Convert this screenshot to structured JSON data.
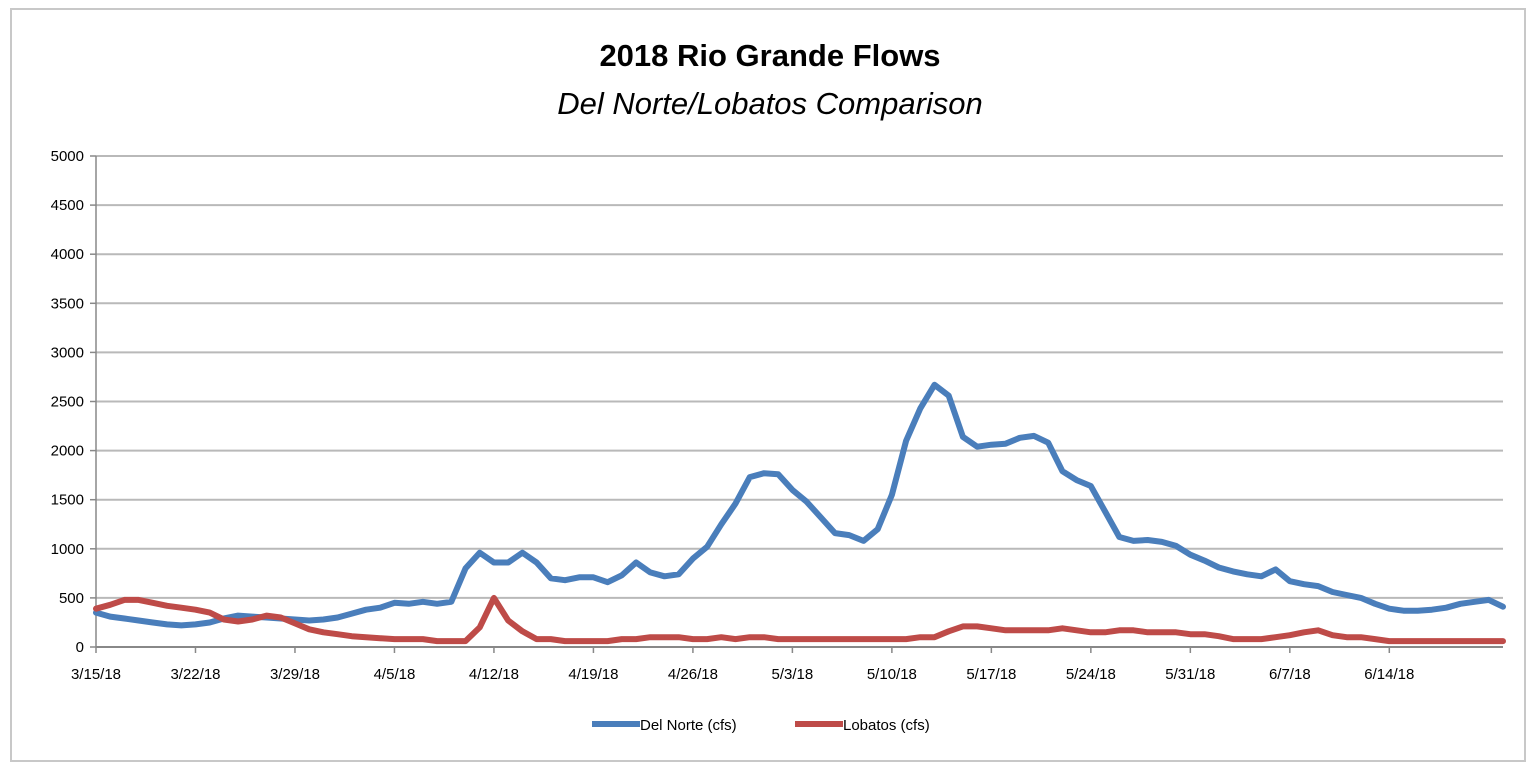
{
  "chart_data": {
    "type": "line",
    "title": "2018 Rio Grande Flows",
    "subtitle": "Del Norte/Lobatos Comparison",
    "xlabel": "",
    "ylabel": "",
    "ylim": [
      0,
      5000
    ],
    "yticks": [
      0,
      500,
      1000,
      1500,
      2000,
      2500,
      3000,
      3500,
      4000,
      4500,
      5000
    ],
    "x_tick_labels": [
      "3/15/18",
      "3/22/18",
      "3/29/18",
      "4/5/18",
      "4/12/18",
      "4/19/18",
      "4/26/18",
      "5/3/18",
      "5/10/18",
      "5/17/18",
      "5/24/18",
      "5/31/18",
      "6/7/18",
      "6/14/18"
    ],
    "grid": true,
    "legend_position": "bottom",
    "series": [
      {
        "name": "Del Norte (cfs)",
        "color": "#4a7ebb",
        "values": [
          [
            0,
            350
          ],
          [
            1,
            310
          ],
          [
            2,
            290
          ],
          [
            3,
            270
          ],
          [
            4,
            250
          ],
          [
            5,
            230
          ],
          [
            6,
            220
          ],
          [
            7,
            230
          ],
          [
            8,
            250
          ],
          [
            9,
            290
          ],
          [
            10,
            320
          ],
          [
            11,
            310
          ],
          [
            12,
            300
          ],
          [
            13,
            290
          ],
          [
            14,
            280
          ],
          [
            15,
            270
          ],
          [
            16,
            280
          ],
          [
            17,
            300
          ],
          [
            18,
            340
          ],
          [
            19,
            380
          ],
          [
            20,
            400
          ],
          [
            21,
            450
          ],
          [
            22,
            440
          ],
          [
            23,
            460
          ],
          [
            24,
            440
          ],
          [
            25,
            460
          ],
          [
            26,
            800
          ],
          [
            27,
            960
          ],
          [
            28,
            860
          ],
          [
            29,
            860
          ],
          [
            30,
            960
          ],
          [
            31,
            860
          ],
          [
            32,
            700
          ],
          [
            33,
            680
          ],
          [
            34,
            710
          ],
          [
            35,
            710
          ],
          [
            36,
            660
          ],
          [
            37,
            730
          ],
          [
            38,
            860
          ],
          [
            39,
            760
          ],
          [
            40,
            720
          ],
          [
            41,
            740
          ],
          [
            42,
            900
          ],
          [
            43,
            1020
          ],
          [
            44,
            1250
          ],
          [
            45,
            1460
          ],
          [
            46,
            1730
          ],
          [
            47,
            1770
          ],
          [
            48,
            1760
          ],
          [
            49,
            1600
          ],
          [
            50,
            1480
          ],
          [
            51,
            1320
          ],
          [
            52,
            1160
          ],
          [
            53,
            1140
          ],
          [
            54,
            1080
          ],
          [
            55,
            1200
          ],
          [
            56,
            1550
          ],
          [
            57,
            2100
          ],
          [
            58,
            2430
          ],
          [
            59,
            2670
          ],
          [
            60,
            2560
          ],
          [
            61,
            2140
          ],
          [
            62,
            2040
          ],
          [
            63,
            2060
          ],
          [
            64,
            2070
          ],
          [
            65,
            2130
          ],
          [
            66,
            2150
          ],
          [
            67,
            2080
          ],
          [
            68,
            1790
          ],
          [
            69,
            1700
          ],
          [
            70,
            1640
          ],
          [
            71,
            1380
          ],
          [
            72,
            1120
          ],
          [
            73,
            1080
          ],
          [
            74,
            1090
          ],
          [
            75,
            1070
          ],
          [
            76,
            1030
          ],
          [
            77,
            940
          ],
          [
            78,
            880
          ],
          [
            79,
            810
          ],
          [
            80,
            770
          ],
          [
            81,
            740
          ],
          [
            82,
            720
          ],
          [
            83,
            790
          ],
          [
            84,
            670
          ],
          [
            85,
            640
          ],
          [
            86,
            620
          ],
          [
            87,
            560
          ],
          [
            88,
            530
          ],
          [
            89,
            500
          ],
          [
            90,
            440
          ],
          [
            91,
            390
          ],
          [
            92,
            370
          ],
          [
            93,
            370
          ],
          [
            94,
            380
          ],
          [
            95,
            400
          ],
          [
            96,
            440
          ],
          [
            97,
            460
          ],
          [
            98,
            480
          ],
          [
            99,
            410
          ]
        ]
      },
      {
        "name": "Lobatos (cfs)",
        "color": "#be4b48",
        "values": [
          [
            0,
            390
          ],
          [
            1,
            430
          ],
          [
            2,
            480
          ],
          [
            3,
            480
          ],
          [
            4,
            450
          ],
          [
            5,
            420
          ],
          [
            6,
            400
          ],
          [
            7,
            380
          ],
          [
            8,
            350
          ],
          [
            9,
            280
          ],
          [
            10,
            260
          ],
          [
            11,
            280
          ],
          [
            12,
            320
          ],
          [
            13,
            300
          ],
          [
            14,
            240
          ],
          [
            15,
            180
          ],
          [
            16,
            150
          ],
          [
            17,
            130
          ],
          [
            18,
            110
          ],
          [
            19,
            100
          ],
          [
            20,
            90
          ],
          [
            21,
            80
          ],
          [
            22,
            80
          ],
          [
            23,
            80
          ],
          [
            24,
            60
          ],
          [
            25,
            60
          ],
          [
            26,
            60
          ],
          [
            27,
            200
          ],
          [
            28,
            500
          ],
          [
            29,
            270
          ],
          [
            30,
            160
          ],
          [
            31,
            80
          ],
          [
            32,
            80
          ],
          [
            33,
            60
          ],
          [
            34,
            60
          ],
          [
            35,
            60
          ],
          [
            36,
            60
          ],
          [
            37,
            80
          ],
          [
            38,
            80
          ],
          [
            39,
            100
          ],
          [
            40,
            100
          ],
          [
            41,
            100
          ],
          [
            42,
            80
          ],
          [
            43,
            80
          ],
          [
            44,
            100
          ],
          [
            45,
            80
          ],
          [
            46,
            100
          ],
          [
            47,
            100
          ],
          [
            48,
            80
          ],
          [
            49,
            80
          ],
          [
            50,
            80
          ],
          [
            51,
            80
          ],
          [
            52,
            80
          ],
          [
            53,
            80
          ],
          [
            54,
            80
          ],
          [
            55,
            80
          ],
          [
            56,
            80
          ],
          [
            57,
            80
          ],
          [
            58,
            100
          ],
          [
            59,
            100
          ],
          [
            60,
            160
          ],
          [
            61,
            210
          ],
          [
            62,
            210
          ],
          [
            63,
            190
          ],
          [
            64,
            170
          ],
          [
            65,
            170
          ],
          [
            66,
            170
          ],
          [
            67,
            170
          ],
          [
            68,
            190
          ],
          [
            69,
            170
          ],
          [
            70,
            150
          ],
          [
            71,
            150
          ],
          [
            72,
            170
          ],
          [
            73,
            170
          ],
          [
            74,
            150
          ],
          [
            75,
            150
          ],
          [
            76,
            150
          ],
          [
            77,
            130
          ],
          [
            78,
            130
          ],
          [
            79,
            110
          ],
          [
            80,
            80
          ],
          [
            81,
            80
          ],
          [
            82,
            80
          ],
          [
            83,
            100
          ],
          [
            84,
            120
          ],
          [
            85,
            150
          ],
          [
            86,
            170
          ],
          [
            87,
            120
          ],
          [
            88,
            100
          ],
          [
            89,
            100
          ],
          [
            90,
            80
          ],
          [
            91,
            60
          ],
          [
            92,
            60
          ],
          [
            93,
            60
          ],
          [
            94,
            60
          ],
          [
            95,
            60
          ],
          [
            96,
            60
          ],
          [
            97,
            60
          ],
          [
            98,
            60
          ],
          [
            99,
            60
          ]
        ]
      }
    ]
  }
}
